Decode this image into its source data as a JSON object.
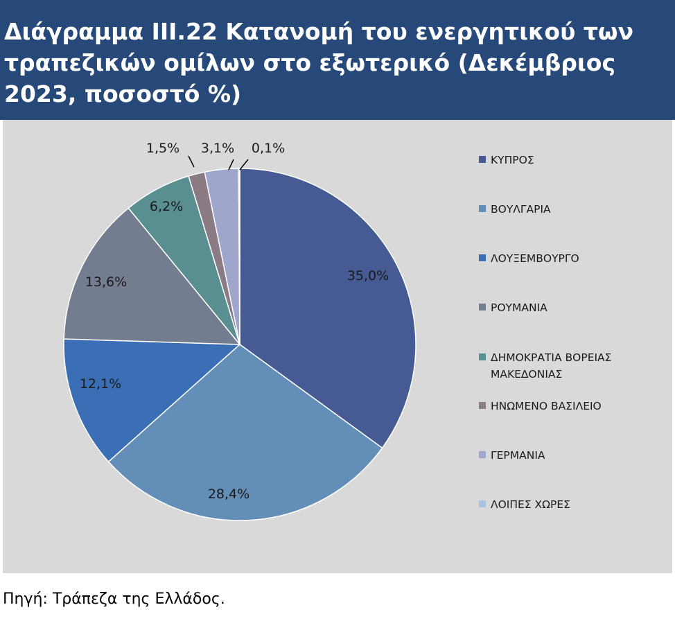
{
  "chart_data": {
    "type": "pie",
    "title": "Διάγραμμα ΙΙΙ.22 Κατανομή του ενεργητικού των τραπεζικών ομίλων στο εξωτερικό (Δεκέμβριος 2023, ποσοστό %)",
    "series": [
      {
        "categories": [
          "ΚΥΠΡΟΣ",
          "ΒΟΥΛΓΑΡΙΑ",
          "ΛΟΥΞΕΜΒΟΥΡΓΟ",
          "ΡΟΥΜΑΝΙΑ",
          "ΔΗΜΟΚΡΑΤΙΑ ΒΟΡΕΙΑΣ ΜΑΚΕΔΟΝΙΑΣ",
          "ΗΝΩΜΕΝΟ ΒΑΣΙΛΕΙΟ",
          "ΓΕΡΜΑΝΙΑ",
          "ΛΟΙΠΕΣ ΧΩΡΕΣ"
        ],
        "values": [
          35.0,
          28.4,
          12.1,
          13.6,
          6.2,
          1.5,
          3.1,
          0.1
        ],
        "labels": [
          "35,0%",
          "28,4%",
          "12,1%",
          "13,6%",
          "6,2%",
          "1,5%",
          "3,1%",
          "0,1%"
        ],
        "colors": [
          "#465a94",
          "#628eb8",
          "#3b6fb5",
          "#737d8f",
          "#5a8f91",
          "#8a7b85",
          "#9ea6cc",
          "#a8c4e0"
        ]
      }
    ],
    "legend": {
      "position": "right"
    }
  },
  "source": "Πηγή: Τράπεζα της Ελλάδος."
}
